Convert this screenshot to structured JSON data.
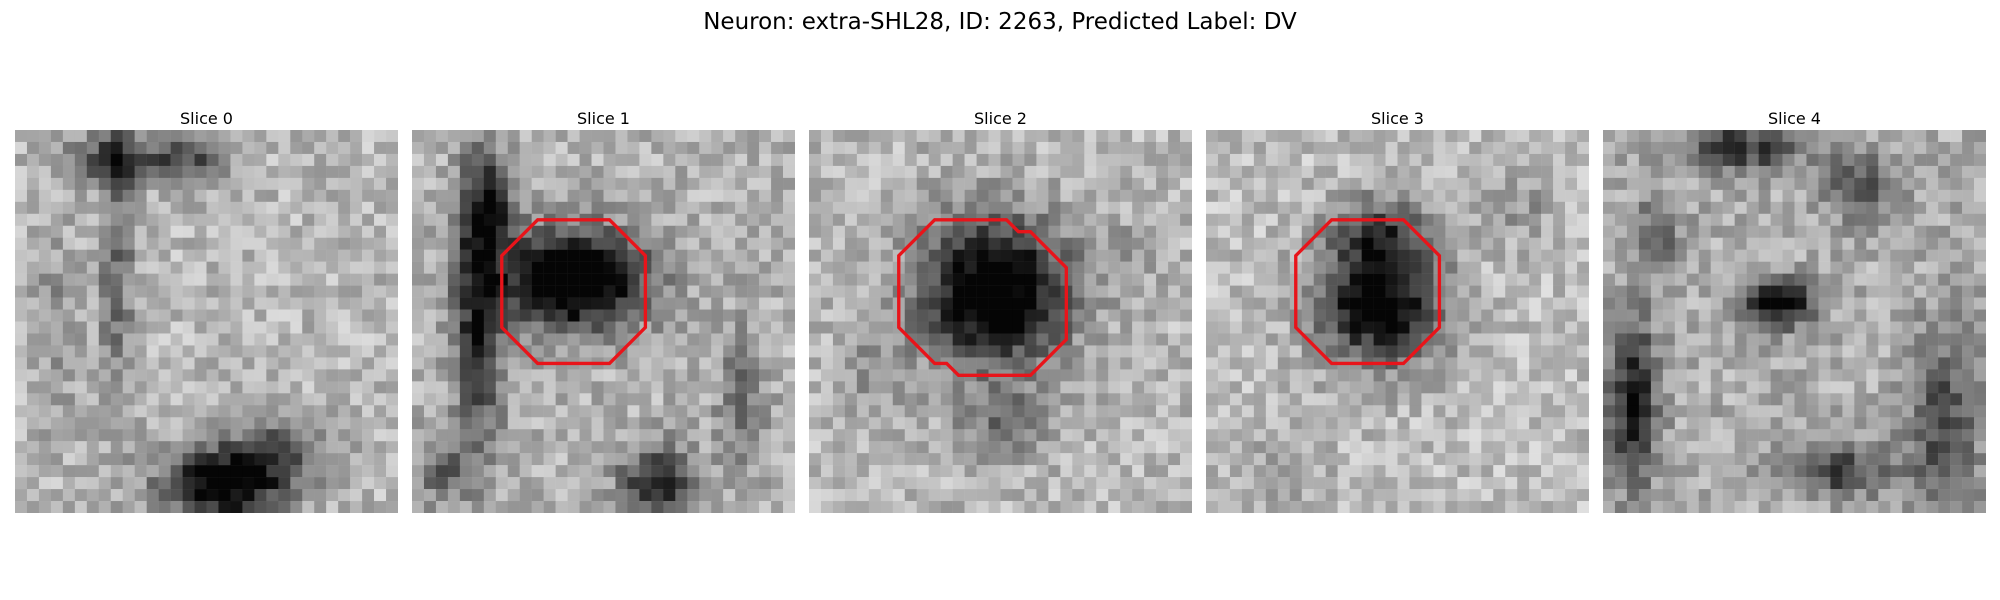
{
  "figure": {
    "title": "Neuron: extra-SHL28, ID: 2263, Predicted Label: DV",
    "outline_color": "#e8141a",
    "colormap": "gray",
    "panels": [
      {
        "title": "Slice 0",
        "has_outline": false
      },
      {
        "title": "Slice 1",
        "has_outline": true
      },
      {
        "title": "Slice 2",
        "has_outline": true
      },
      {
        "title": "Slice 3",
        "has_outline": true
      },
      {
        "title": "Slice 4",
        "has_outline": false
      }
    ]
  }
}
